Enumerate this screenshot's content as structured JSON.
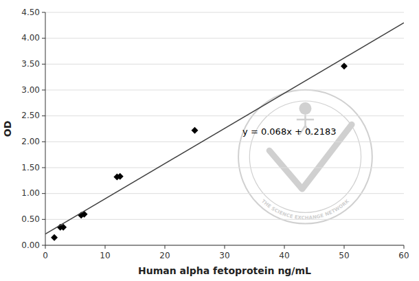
{
  "chart_data": {
    "type": "scatter",
    "xlabel": "Human alpha fetoprotein ng/mL",
    "ylabel": "OD",
    "series": [
      {
        "type": "scatter",
        "marker": "diamond",
        "color": "#000000",
        "x": [
          1.5,
          2.5,
          3.0,
          6.0,
          6.5,
          12.0,
          12.5,
          25.0,
          50.0
        ],
        "values": [
          0.15,
          0.35,
          0.35,
          0.58,
          0.6,
          1.32,
          1.33,
          2.22,
          3.46
        ]
      },
      {
        "type": "line",
        "color": "#404040",
        "x": [
          0,
          60
        ],
        "values": [
          0.2183,
          4.2983
        ]
      }
    ],
    "annotations": [
      {
        "text": "y = 0.068x + 0.2183",
        "x": 33,
        "y": 2.18
      },
      {
        "text": "THE SCIENCE EXCHANGE NETWORK",
        "color": "#d0d0d0"
      }
    ],
    "xlim": [
      0,
      60
    ],
    "ylim": [
      0,
      4.5
    ],
    "xticks": [
      0,
      10,
      20,
      30,
      40,
      50,
      60
    ],
    "yticks": [
      {
        "value": 0,
        "label": "0.00"
      },
      {
        "value": 0.5,
        "label": "0.50"
      },
      {
        "value": 1,
        "label": "1.00"
      },
      {
        "value": 1.5,
        "label": "1.50"
      },
      {
        "value": 2,
        "label": "2.00"
      },
      {
        "value": 2.5,
        "label": "2.50"
      },
      {
        "value": 3,
        "label": "3.00"
      },
      {
        "value": 3.5,
        "label": "3.50"
      },
      {
        "value": 4,
        "label": "4.00"
      },
      {
        "value": 4.5,
        "label": "4.50"
      }
    ],
    "grid": true
  }
}
